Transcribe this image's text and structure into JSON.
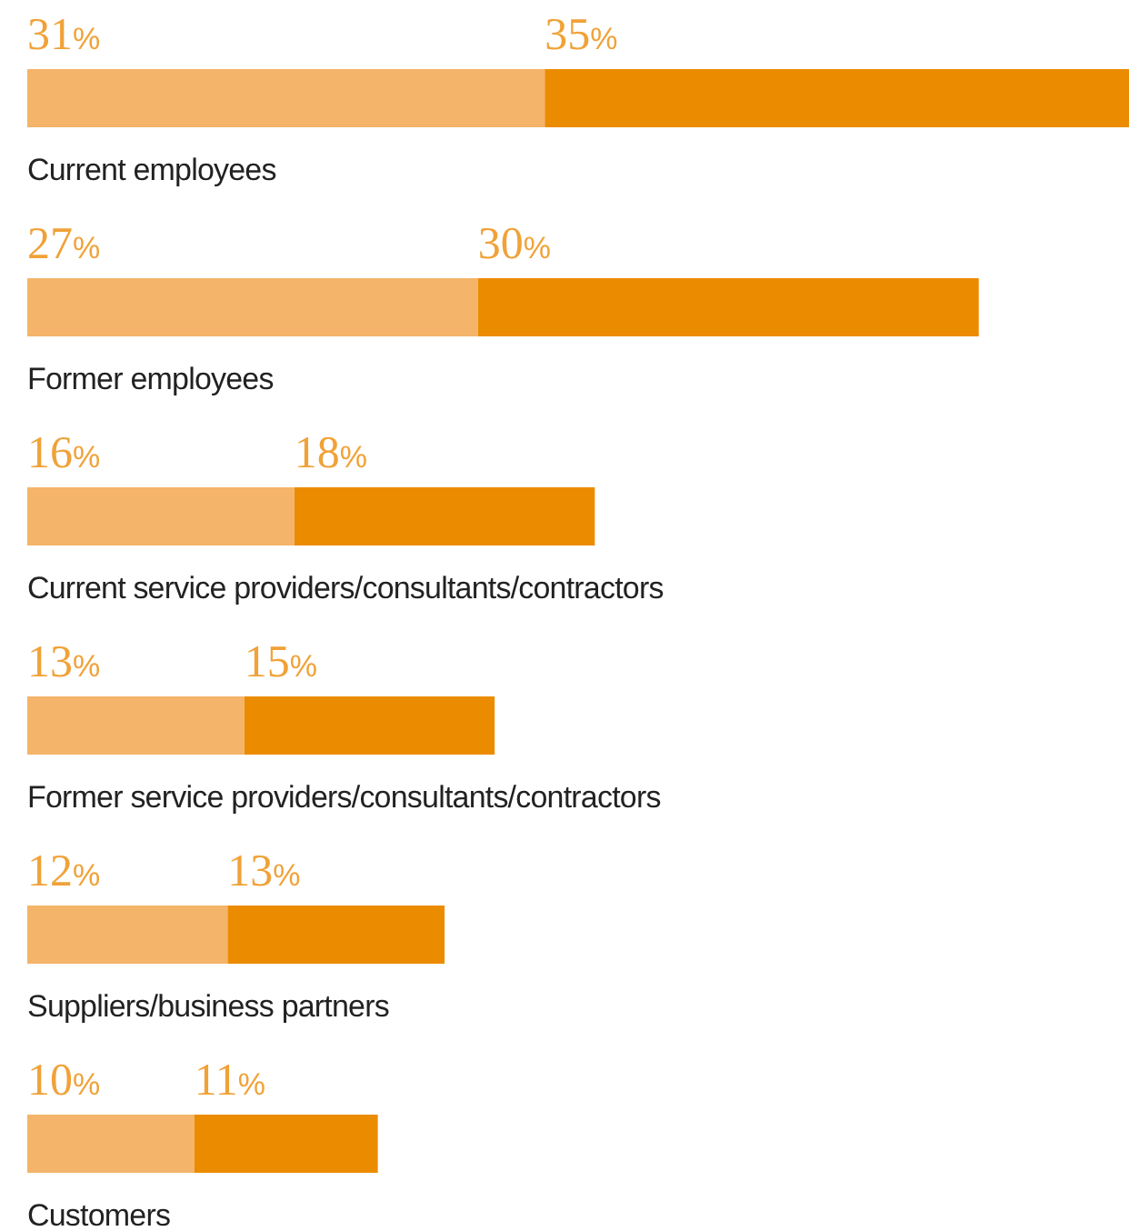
{
  "chart_data": {
    "type": "bar",
    "orientation": "horizontal",
    "stacked": true,
    "categories": [
      "Current employees",
      "Former employees",
      "Current service providers/consultants/contractors",
      "Former service providers/consultants/contractors",
      "Suppliers/business partners",
      "Customers"
    ],
    "series": [
      {
        "color": "#f4b46a",
        "values": [
          31,
          27,
          16,
          13,
          12,
          10
        ],
        "value_labels": [
          "31%",
          "27%",
          "16%",
          "13%",
          "12%",
          "10%"
        ]
      },
      {
        "color": "#eb8c00",
        "values": [
          35,
          30,
          18,
          15,
          13,
          11
        ],
        "value_labels": [
          "35%",
          "30%",
          "18%",
          "15%",
          "13%",
          "11%"
        ]
      }
    ],
    "xlim": [
      0,
      66
    ],
    "tick_labels": false
  }
}
